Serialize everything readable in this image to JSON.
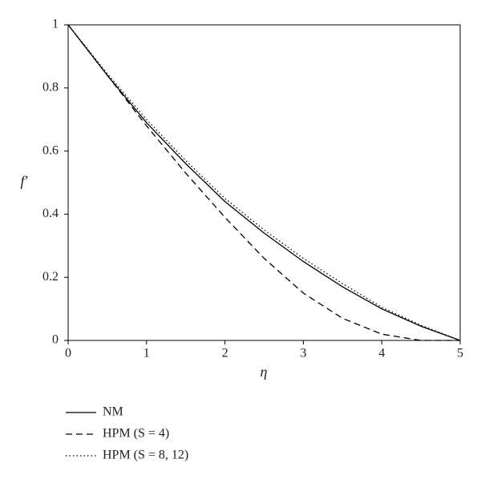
{
  "chart_data": {
    "type": "line",
    "x_label": "η",
    "y_label": "f′",
    "x": [
      0,
      0.5,
      1,
      1.5,
      2,
      2.5,
      3,
      3.5,
      4,
      4.5,
      5
    ],
    "series": [
      {
        "name": "NM",
        "color": "#000000",
        "line_style": "solid",
        "values": [
          1,
          0.84,
          0.69,
          0.56,
          0.44,
          0.34,
          0.25,
          0.17,
          0.1,
          0.045,
          0
        ]
      },
      {
        "name": "HPM (S = 4)",
        "color": "#000000",
        "line_style": "dashed",
        "values": [
          1,
          0.84,
          0.68,
          0.53,
          0.39,
          0.26,
          0.15,
          0.07,
          0.02,
          0,
          0
        ]
      },
      {
        "name": "HPM (S = 8, 12)",
        "color": "#000000",
        "line_style": "dotted",
        "values": [
          1,
          0.845,
          0.7,
          0.57,
          0.45,
          0.35,
          0.26,
          0.18,
          0.105,
          0.048,
          0
        ]
      }
    ],
    "xlim": [
      0,
      5
    ],
    "ylim": [
      0,
      1
    ],
    "xticks": [
      0,
      1,
      2,
      3,
      4,
      5
    ],
    "yticks": [
      0,
      0.2,
      0.4,
      0.6,
      0.8,
      1
    ],
    "grid": false
  }
}
